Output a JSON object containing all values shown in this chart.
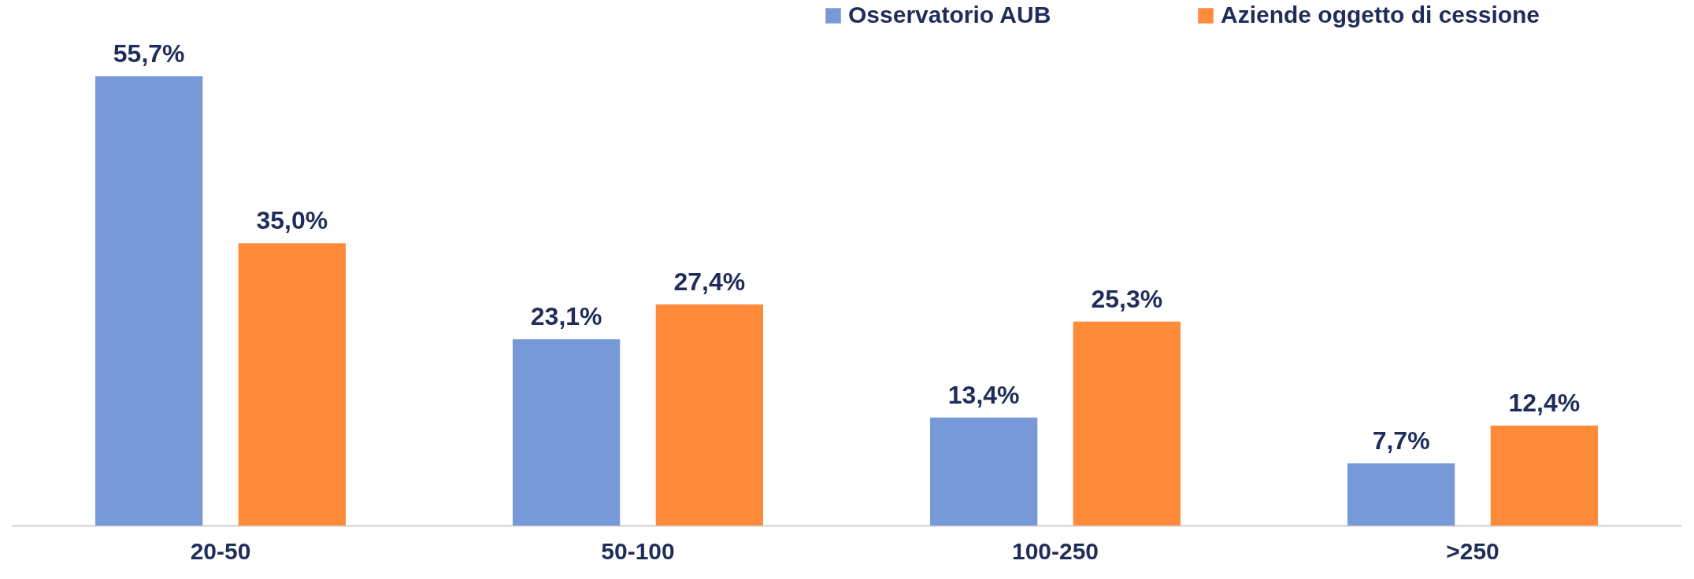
{
  "chart_data": {
    "type": "bar",
    "categories": [
      "20-50",
      "50-100",
      "100-250",
      ">250"
    ],
    "series": [
      {
        "name": "Osservatorio AUB",
        "color": "#7799d8",
        "values": [
          55.7,
          23.1,
          13.4,
          7.7
        ],
        "value_labels": [
          "55,7%",
          "23,1%",
          "13,4%",
          "7,7%"
        ]
      },
      {
        "name": "Aziende oggetto di cessione",
        "color": "#ff8a3a",
        "values": [
          35.0,
          27.4,
          25.3,
          12.4
        ],
        "value_labels": [
          "35,0%",
          "27,4%",
          "25,3%",
          "12,4%"
        ]
      }
    ],
    "legend": "top"
  }
}
